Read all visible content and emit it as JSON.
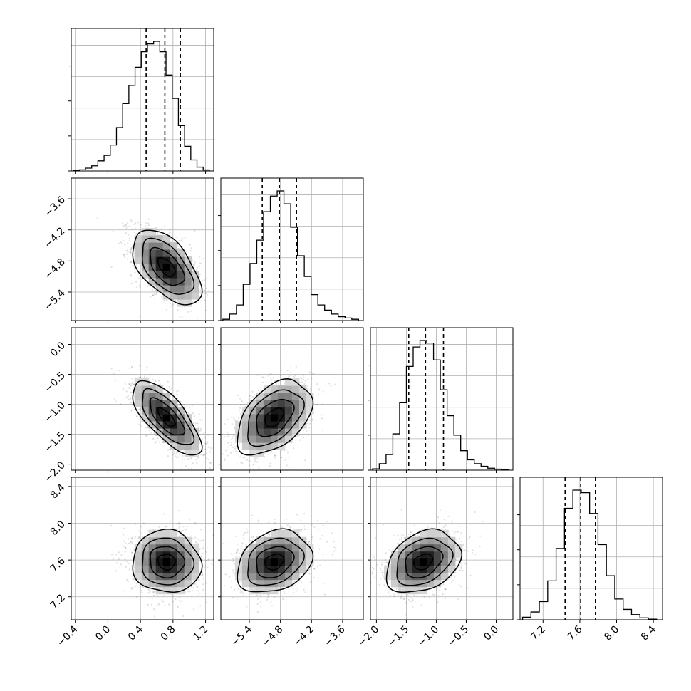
{
  "chart_data": {
    "type": "corner",
    "parameters": [
      {
        "ticks": [
          -0.4,
          0.0,
          0.4,
          0.8,
          1.2
        ],
        "tick_labels": [
          "−0.4",
          "0.0",
          "0.4",
          "0.8",
          "1.2"
        ],
        "range": [
          -0.45,
          1.3
        ],
        "quantiles": [
          0.47,
          0.7,
          0.89
        ],
        "hist": [
          0.006,
          0.009,
          0.022,
          0.04,
          0.078,
          0.12,
          0.2,
          0.335,
          0.52,
          0.66,
          0.8,
          0.92,
          0.98,
          1.0,
          0.92,
          0.74,
          0.56,
          0.35,
          0.19,
          0.085,
          0.03,
          0.008
        ]
      },
      {
        "ticks": [
          -5.4,
          -4.8,
          -4.2,
          -3.6
        ],
        "tick_labels": [
          "−5.4",
          "−4.8",
          "−4.2",
          "−3.6"
        ],
        "range": [
          -5.95,
          -3.2
        ],
        "quantiles": [
          -5.15,
          -4.82,
          -4.49
        ],
        "hist": [
          0.01,
          0.05,
          0.12,
          0.28,
          0.44,
          0.62,
          0.84,
          0.96,
          1.0,
          0.9,
          0.72,
          0.5,
          0.34,
          0.2,
          0.12,
          0.08,
          0.05,
          0.03,
          0.02,
          0.01
        ]
      },
      {
        "ticks": [
          -2.0,
          -1.5,
          -1.0,
          -0.5,
          0.0
        ],
        "tick_labels": [
          "−2.0",
          "−1.5",
          "−1.0",
          "−0.5",
          "0.0"
        ],
        "range": [
          -2.1,
          0.28
        ],
        "quantiles": [
          -1.46,
          -1.18,
          -0.88
        ],
        "hist": [
          0.01,
          0.05,
          0.12,
          0.28,
          0.52,
          0.8,
          0.95,
          1.0,
          0.98,
          0.85,
          0.62,
          0.42,
          0.27,
          0.15,
          0.08,
          0.05,
          0.03,
          0.015,
          0.008,
          0.005
        ]
      },
      {
        "ticks": [
          7.2,
          7.6,
          8.0,
          8.4
        ],
        "tick_labels": [
          "7.2",
          "7.6",
          "8.0",
          "8.4"
        ],
        "range": [
          6.95,
          8.5
        ],
        "quantiles": [
          7.44,
          7.61,
          7.77
        ],
        "hist": [
          0.02,
          0.06,
          0.14,
          0.3,
          0.55,
          0.86,
          1.0,
          0.98,
          0.82,
          0.58,
          0.34,
          0.16,
          0.08,
          0.04,
          0.015,
          0.005
        ]
      }
    ],
    "pairs": [
      {
        "row": 1,
        "col": 0,
        "mean": [
          0.72,
          -4.92
        ],
        "sigma": [
          0.21,
          0.36
        ],
        "rho": -0.55
      },
      {
        "row": 2,
        "col": 0,
        "mean": [
          0.72,
          -1.22
        ],
        "sigma": [
          0.21,
          0.31
        ],
        "rho": -0.72
      },
      {
        "row": 2,
        "col": 1,
        "mean": [
          -4.92,
          -1.22
        ],
        "sigma": [
          0.36,
          0.31
        ],
        "rho": 0.45
      },
      {
        "row": 3,
        "col": 0,
        "mean": [
          0.72,
          7.58
        ],
        "sigma": [
          0.21,
          0.17
        ],
        "rho": -0.05
      },
      {
        "row": 3,
        "col": 1,
        "mean": [
          -4.92,
          7.58
        ],
        "sigma": [
          0.36,
          0.17
        ],
        "rho": 0.25
      },
      {
        "row": 3,
        "col": 2,
        "mean": [
          -1.22,
          7.58
        ],
        "sigma": [
          0.31,
          0.17
        ],
        "rho": 0.3
      }
    ],
    "grid": true,
    "histogram_style": "step",
    "quantile_style": "dashed"
  }
}
